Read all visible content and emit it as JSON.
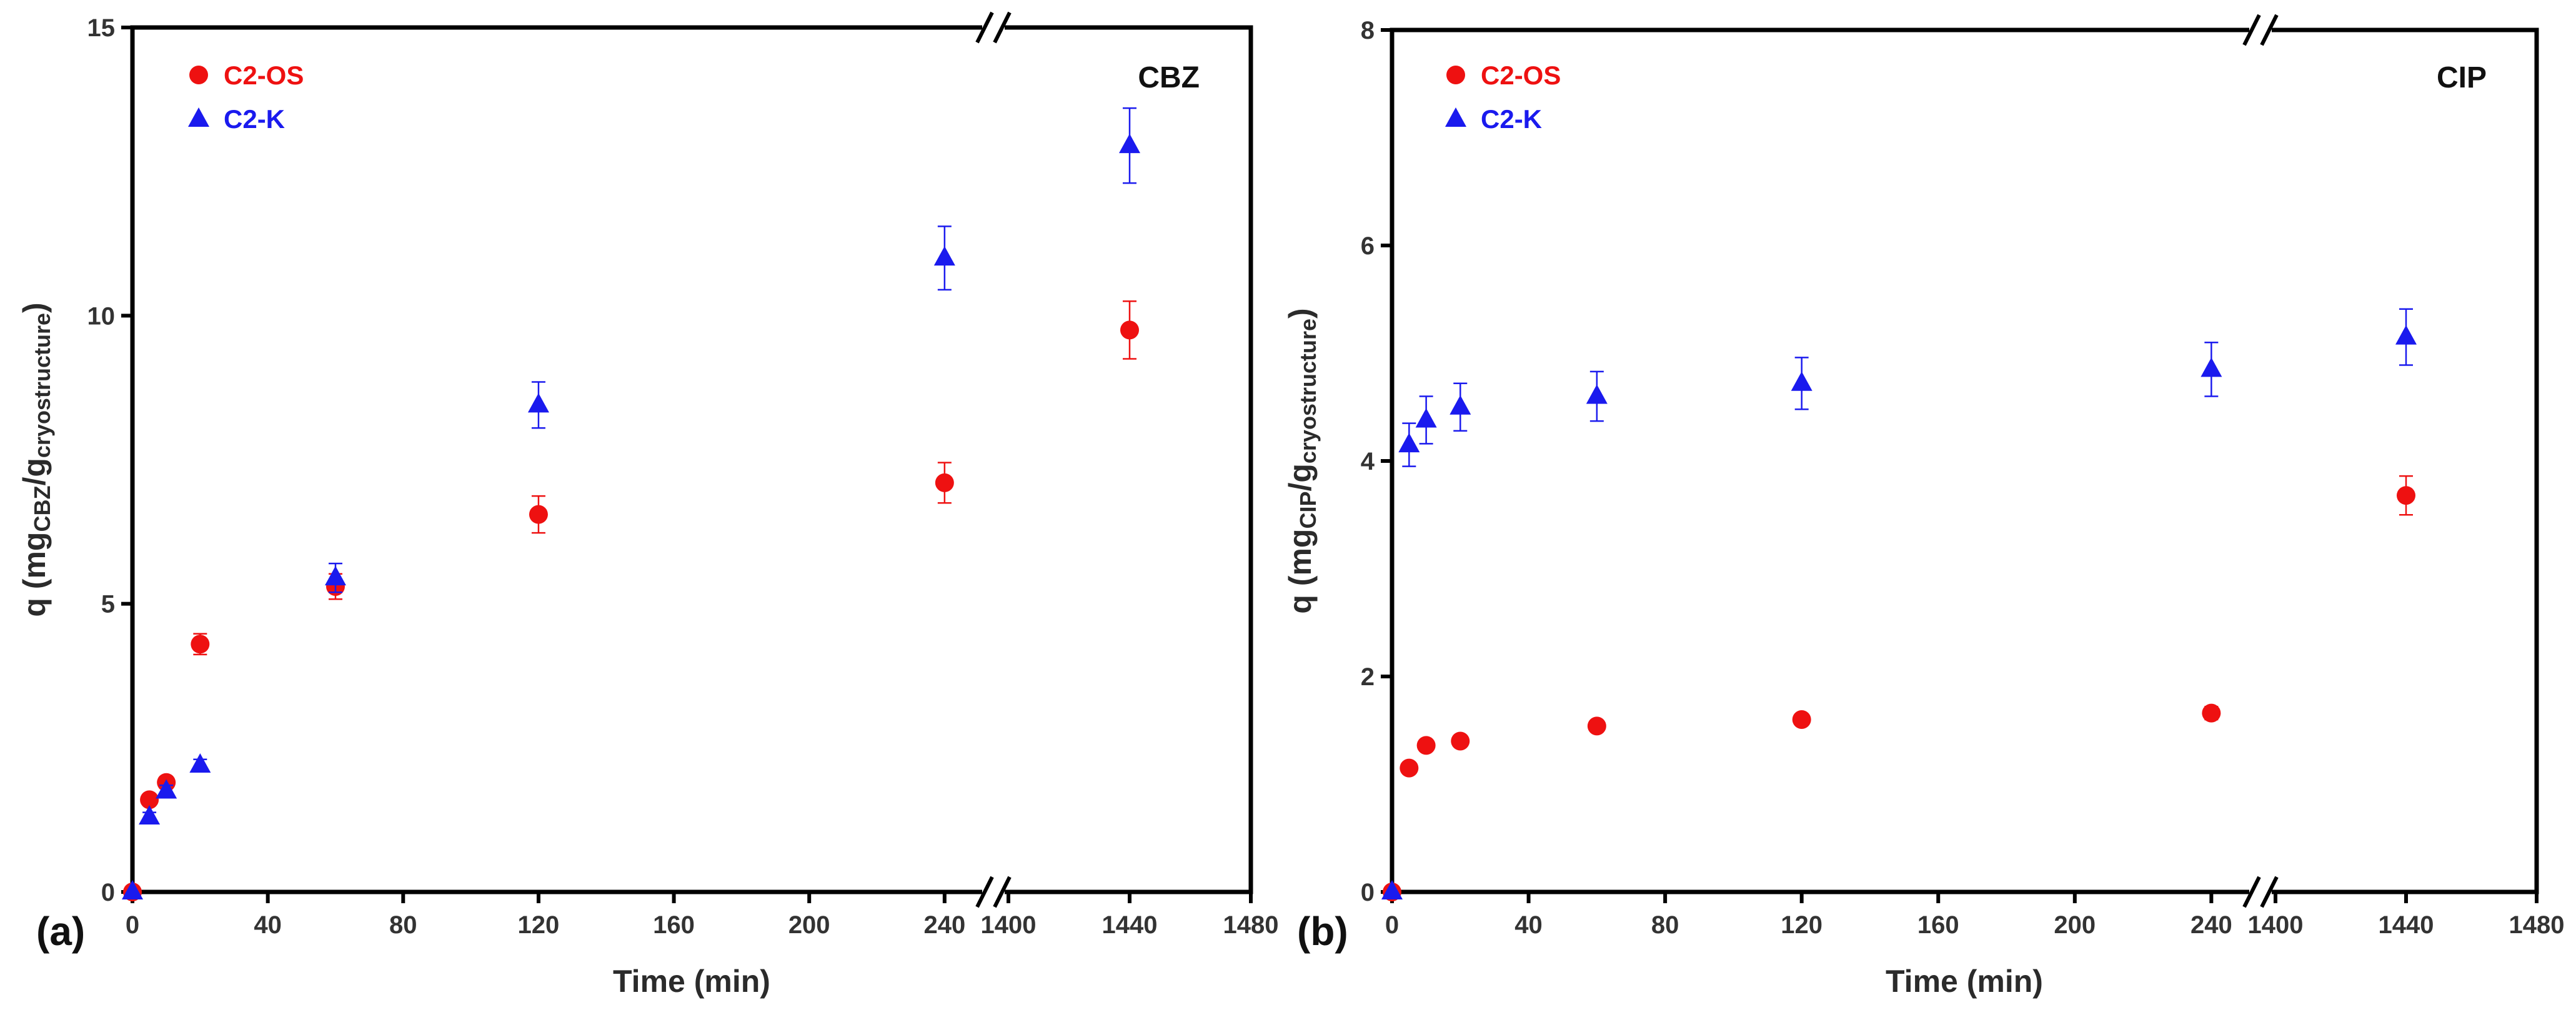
{
  "chart_data": [
    {
      "panel": "(a)",
      "type": "scatter",
      "analyte": "CBZ",
      "xlabel": "Time (min)",
      "ylabel_main": "q (mg",
      "ylabel_sub1": "CBZ",
      "ylabel_mid": "/g",
      "ylabel_sub2": "cryostructure",
      "ylabel_end": ")",
      "ylim": [
        0,
        15
      ],
      "yticks": [
        0,
        5,
        10,
        15
      ],
      "xticks_left": [
        0,
        40,
        80,
        120,
        160,
        200,
        240
      ],
      "xticks_right": [
        1400,
        1440,
        1480
      ],
      "axis_break": "//",
      "series": [
        {
          "name": "C2-OS",
          "marker": "circle",
          "color": "#ee1111",
          "x": [
            0,
            5,
            10,
            20,
            60,
            120,
            240,
            1440
          ],
          "y": [
            0,
            1.6,
            1.9,
            4.3,
            5.3,
            6.55,
            7.1,
            9.75
          ],
          "err": [
            0,
            0.08,
            0.1,
            0.18,
            0.22,
            0.32,
            0.35,
            0.5
          ]
        },
        {
          "name": "C2-K",
          "marker": "triangle",
          "color": "#1a1aee",
          "x": [
            0,
            5,
            10,
            20,
            60,
            120,
            240,
            1440
          ],
          "y": [
            0,
            1.3,
            1.75,
            2.2,
            5.45,
            8.45,
            11.0,
            12.95
          ],
          "err": [
            0,
            0.08,
            0.1,
            0.1,
            0.25,
            0.4,
            0.55,
            0.65
          ]
        }
      ]
    },
    {
      "panel": "(b)",
      "type": "scatter",
      "analyte": "CIP",
      "xlabel": "Time (min)",
      "ylabel_main": "q (mg",
      "ylabel_sub1": "CIP",
      "ylabel_mid": "/g",
      "ylabel_sub2": "cryostructure",
      "ylabel_end": ")",
      "ylim": [
        0,
        8
      ],
      "yticks": [
        0,
        2,
        4,
        6,
        8
      ],
      "xticks_left": [
        0,
        40,
        80,
        120,
        160,
        200,
        240
      ],
      "xticks_right": [
        1400,
        1440,
        1480
      ],
      "axis_break": "//",
      "series": [
        {
          "name": "C2-OS",
          "marker": "circle",
          "color": "#ee1111",
          "x": [
            0,
            5,
            10,
            20,
            60,
            120,
            240,
            1440
          ],
          "y": [
            0,
            1.15,
            1.36,
            1.4,
            1.54,
            1.6,
            1.66,
            3.68
          ],
          "err": [
            0,
            0.04,
            0.04,
            0.04,
            0.05,
            0.05,
            0.06,
            0.18
          ]
        },
        {
          "name": "C2-K",
          "marker": "triangle",
          "color": "#1a1aee",
          "x": [
            0,
            5,
            10,
            20,
            60,
            120,
            240,
            1440
          ],
          "y": [
            0,
            4.15,
            4.38,
            4.5,
            4.6,
            4.72,
            4.85,
            5.15
          ],
          "err": [
            0,
            0.2,
            0.22,
            0.22,
            0.23,
            0.24,
            0.25,
            0.26
          ]
        }
      ]
    }
  ]
}
